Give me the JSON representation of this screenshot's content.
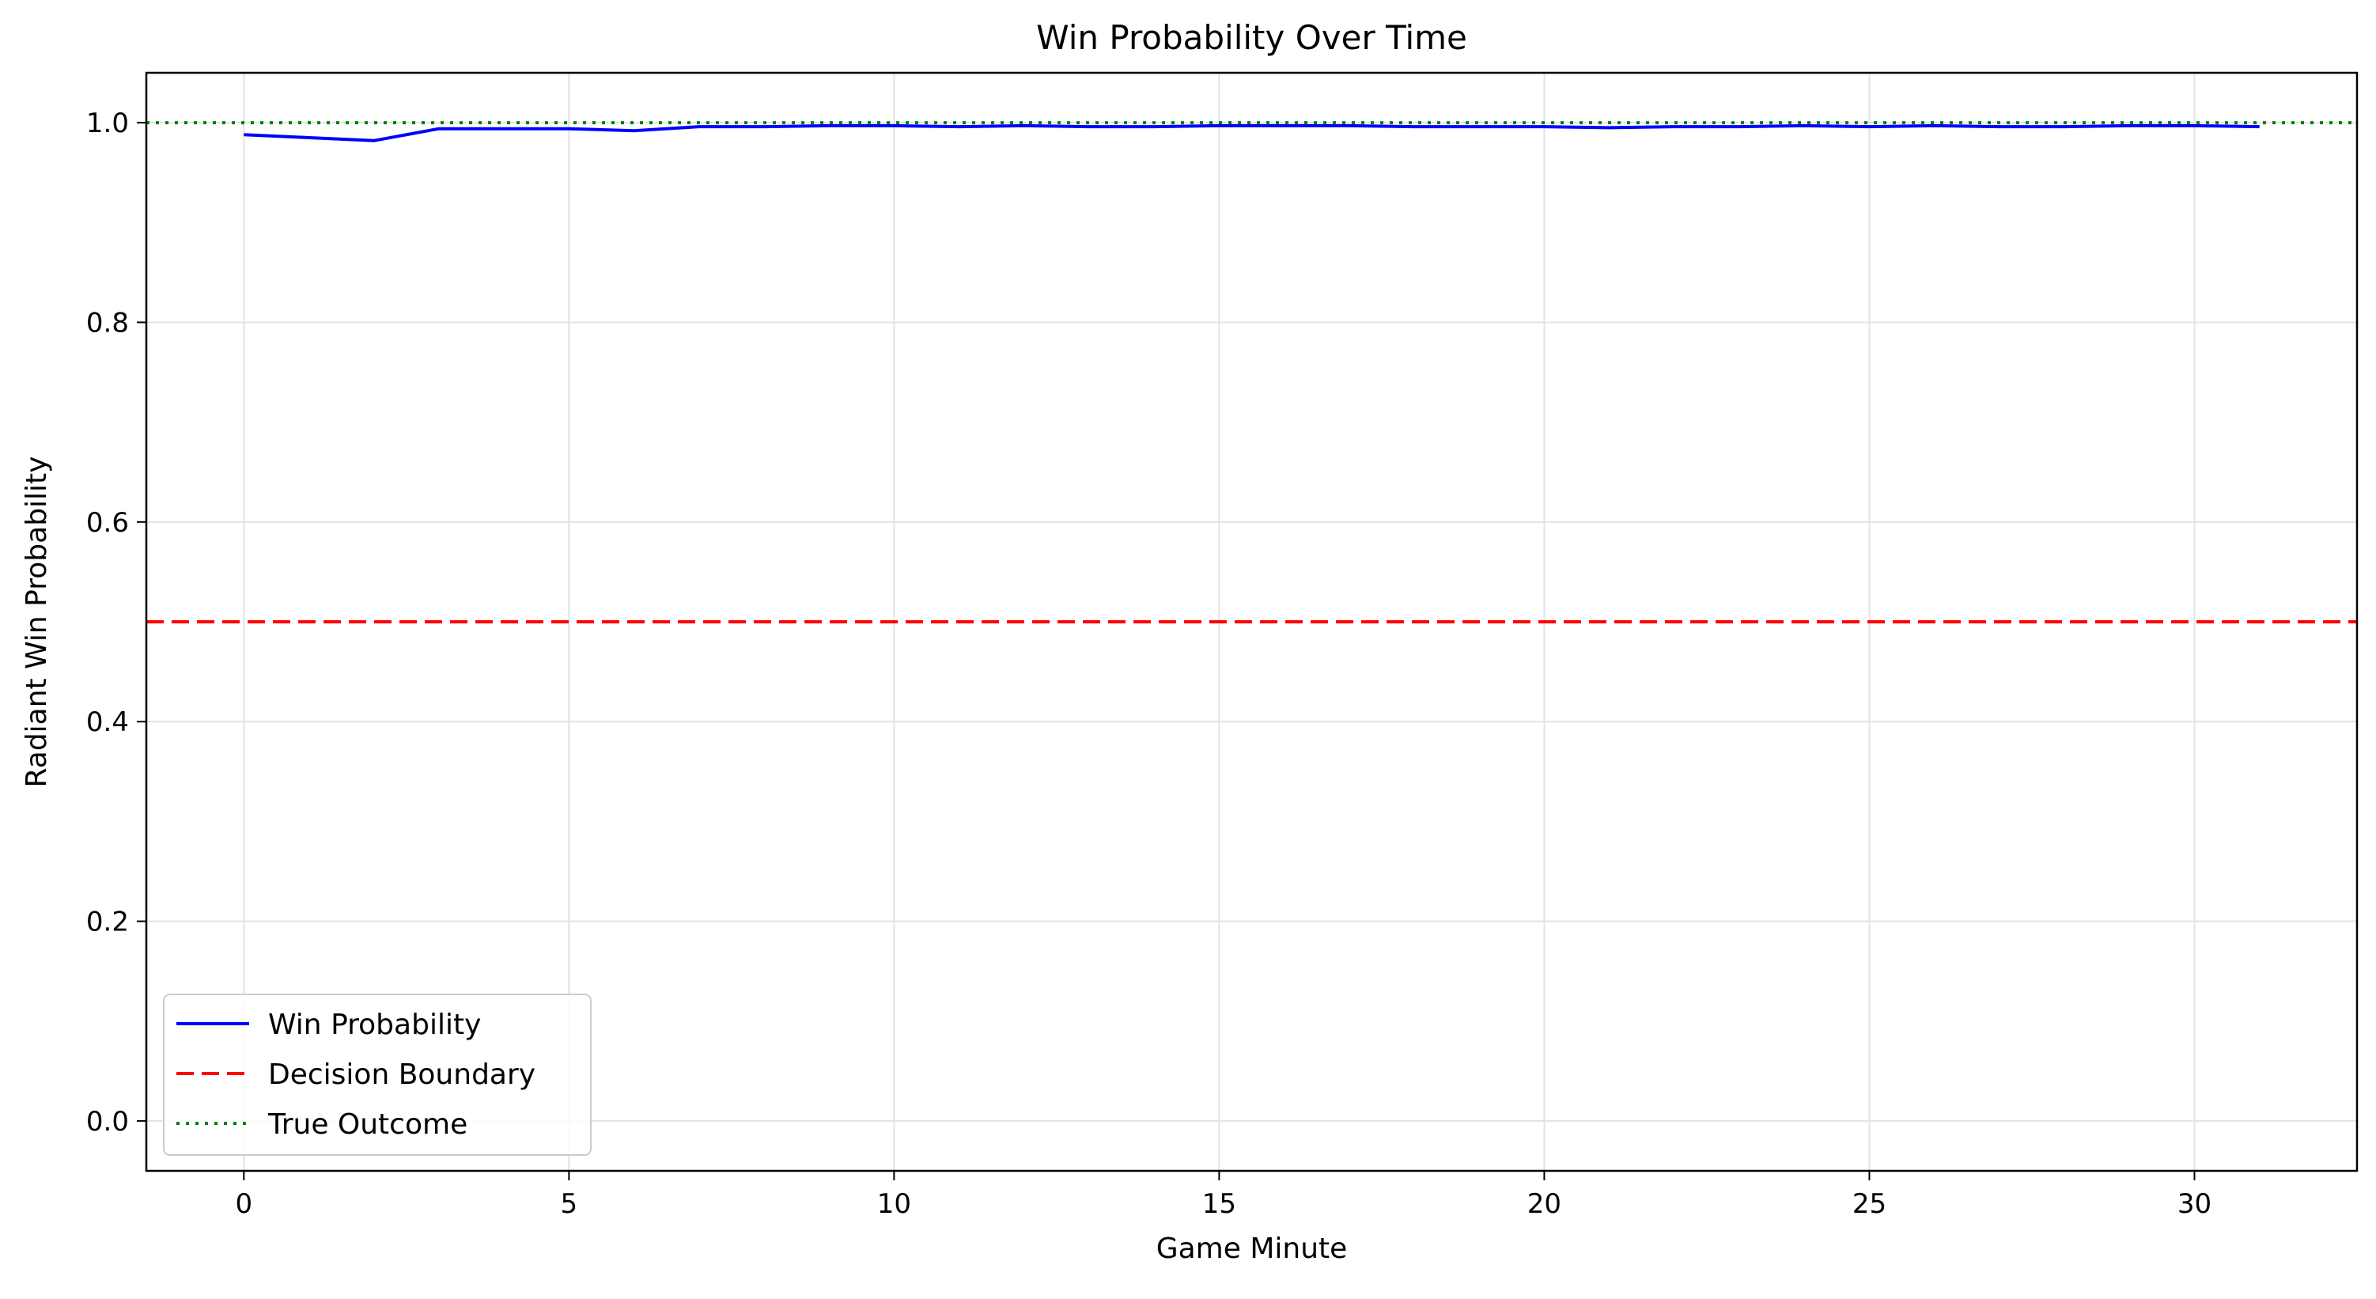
{
  "chart_data": {
    "type": "line",
    "title": "Win Probability Over Time",
    "xlabel": "Game Minute",
    "ylabel": "Radiant Win Probability",
    "xlim": [
      -1.5,
      32.5
    ],
    "ylim": [
      -0.05,
      1.05
    ],
    "xticks": [
      0,
      5,
      10,
      15,
      20,
      25,
      30
    ],
    "xtick_labels": [
      "0",
      "5",
      "10",
      "15",
      "20",
      "25",
      "30"
    ],
    "yticks": [
      0.0,
      0.2,
      0.4,
      0.6,
      0.8,
      1.0
    ],
    "ytick_labels": [
      "0.0",
      "0.2",
      "0.4",
      "0.6",
      "0.8",
      "1.0"
    ],
    "grid": true,
    "legend_position": "lower-left",
    "series": [
      {
        "name": "Win Probability",
        "color": "#0000ff",
        "style": "solid",
        "x": [
          0,
          1,
          2,
          3,
          4,
          5,
          6,
          7,
          8,
          9,
          10,
          11,
          12,
          13,
          14,
          15,
          16,
          17,
          18,
          19,
          20,
          21,
          22,
          23,
          24,
          25,
          26,
          27,
          28,
          29,
          30,
          31
        ],
        "y": [
          0.988,
          0.985,
          0.982,
          0.994,
          0.994,
          0.994,
          0.992,
          0.996,
          0.996,
          0.997,
          0.997,
          0.996,
          0.997,
          0.996,
          0.996,
          0.997,
          0.997,
          0.997,
          0.996,
          0.996,
          0.996,
          0.995,
          0.996,
          0.996,
          0.997,
          0.996,
          0.997,
          0.996,
          0.996,
          0.997,
          0.997,
          0.996
        ]
      },
      {
        "name": "Decision Boundary",
        "color": "#ff0000",
        "style": "dashed",
        "hline": 0.5
      },
      {
        "name": "True Outcome",
        "color": "#008000",
        "style": "dotted",
        "hline": 1.0
      }
    ]
  }
}
